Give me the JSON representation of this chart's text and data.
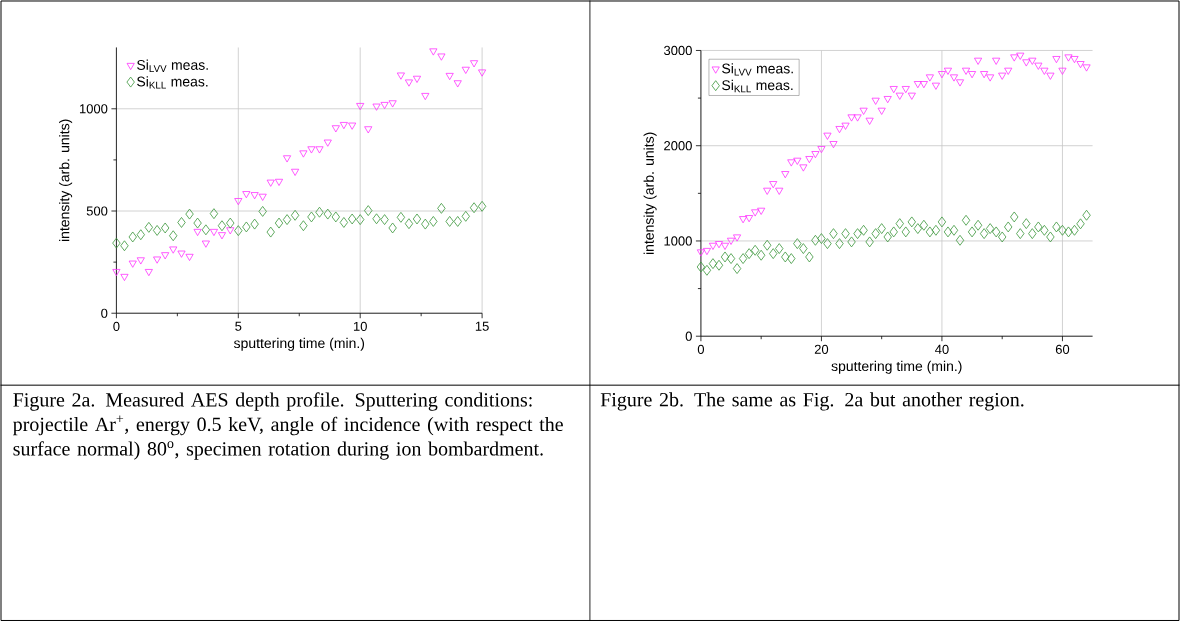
{
  "chart_data": [
    {
      "type": "scatter",
      "xlabel": "sputtering time (min.)",
      "ylabel": "intensity (arb. units)",
      "x": [
        0,
        0.33,
        0.67,
        1,
        1.33,
        1.67,
        2,
        2.33,
        2.67,
        3,
        3.33,
        3.67,
        4,
        4.33,
        4.67,
        5,
        5.33,
        5.67,
        6,
        6.33,
        6.67,
        7,
        7.33,
        7.67,
        8,
        8.33,
        8.67,
        9,
        9.33,
        9.67,
        10,
        10.33,
        10.67,
        11,
        11.33,
        11.67,
        12,
        12.33,
        12.67,
        13,
        13.33,
        13.67,
        14,
        14.33,
        14.67,
        15
      ],
      "series": [
        {
          "name": "Si$_{LVV}$ meas.",
          "color": "#ff33ff",
          "marker": "triangle",
          "values": [
            204,
            180,
            245,
            261,
            204,
            265,
            286,
            314,
            294,
            278,
            400,
            343,
            400,
            384,
            408,
            551,
            585,
            580,
            572,
            641,
            645,
            760,
            694,
            784,
            804,
            804,
            837,
            907,
            923,
            920,
            1016,
            902,
            1013,
            1021,
            1029,
            1165,
            1131,
            1149,
            1065,
            1283,
            1258,
            1163,
            1127,
            1193,
            1225,
            1180
          ]
        },
        {
          "name": "Si$_{KLL}$ meas.",
          "color": "#3a963a",
          "marker": "diamond",
          "values": [
            343,
            330,
            373,
            384,
            420,
            405,
            417,
            379,
            444,
            485,
            441,
            408,
            487,
            428,
            441,
            404,
            422,
            436,
            498,
            397,
            441,
            458,
            479,
            428,
            471,
            494,
            485,
            471,
            444,
            461,
            458,
            502,
            462,
            458,
            417,
            469,
            438,
            461,
            436,
            449,
            513,
            449,
            449,
            474,
            516,
            523
          ]
        }
      ],
      "xlim": [
        0,
        15
      ],
      "ylim": [
        0,
        1300
      ],
      "xticks": [
        0,
        5,
        10,
        15
      ],
      "yticks": [
        0,
        500,
        1000
      ],
      "grid": true,
      "legend": "top left",
      "annotations": [
        "Figure 2a. Measured AES depth profile. Sputtering conditions: projectile Ar$^{+}$, energy 0.5 keV, angle of incidence (with respect the surface normal) 80$^{o}$, specimen rotation during ion bombardment."
      ]
    },
    {
      "type": "scatter",
      "xlabel": "sputtering time (min.)",
      "ylabel": "intensity (arb. units)",
      "x": [
        0,
        1,
        2,
        3,
        4,
        5,
        6,
        7,
        8,
        9,
        10,
        11,
        12,
        13,
        14,
        15,
        16,
        17,
        18,
        19,
        20,
        21,
        22,
        23,
        24,
        25,
        26,
        27,
        28,
        29,
        30,
        31,
        32,
        33,
        34,
        35,
        36,
        37,
        38,
        39,
        40,
        41,
        42,
        43,
        44,
        45,
        46,
        47,
        48,
        49,
        50,
        51,
        52,
        53,
        54,
        55,
        56,
        57,
        58,
        59,
        60,
        61,
        62,
        63,
        64
      ],
      "series": [
        {
          "name": "Si$_{LVV}$ meas.",
          "color": "#ff33ff",
          "marker": "triangle",
          "values": [
            885,
            900,
            954,
            972,
            954,
            1007,
            1042,
            1234,
            1245,
            1305,
            1322,
            1532,
            1602,
            1532,
            1707,
            1830,
            1847,
            1777,
            1865,
            1917,
            1970,
            2110,
            2022,
            2180,
            2215,
            2302,
            2302,
            2372,
            2267,
            2477,
            2372,
            2495,
            2600,
            2530,
            2600,
            2530,
            2652,
            2652,
            2722,
            2635,
            2757,
            2792,
            2722,
            2670,
            2792,
            2757,
            2897,
            2757,
            2722,
            2897,
            2740,
            2792,
            2932,
            2950,
            2880,
            2897,
            2845,
            2792,
            2740,
            2915,
            2792,
            2932,
            2915,
            2862,
            2827
          ]
        },
        {
          "name": "Si$_{KLL}$ meas.",
          "color": "#3a963a",
          "marker": "diamond",
          "values": [
            727,
            692,
            762,
            745,
            832,
            815,
            710,
            815,
            867,
            902,
            850,
            955,
            867,
            920,
            832,
            815,
            972,
            920,
            832,
            1007,
            1025,
            972,
            1077,
            972,
            1077,
            990,
            1077,
            1112,
            990,
            1077,
            1130,
            1042,
            1095,
            1182,
            1095,
            1200,
            1130,
            1165,
            1095,
            1112,
            1200,
            1095,
            1112,
            1007,
            1217,
            1095,
            1165,
            1077,
            1130,
            1095,
            1042,
            1147,
            1252,
            1077,
            1182,
            1077,
            1147,
            1112,
            1042,
            1147,
            1112,
            1095,
            1112,
            1180,
            1270
          ]
        }
      ],
      "xlim": [
        0,
        65
      ],
      "ylim": [
        0,
        3000
      ],
      "xticks": [
        0,
        20,
        40,
        60
      ],
      "yticks": [
        0,
        1000,
        2000,
        3000
      ],
      "grid": true,
      "legend": "top left",
      "annotations": [
        "Figure 2b. The same as Fig. 2a but another region."
      ]
    }
  ]
}
